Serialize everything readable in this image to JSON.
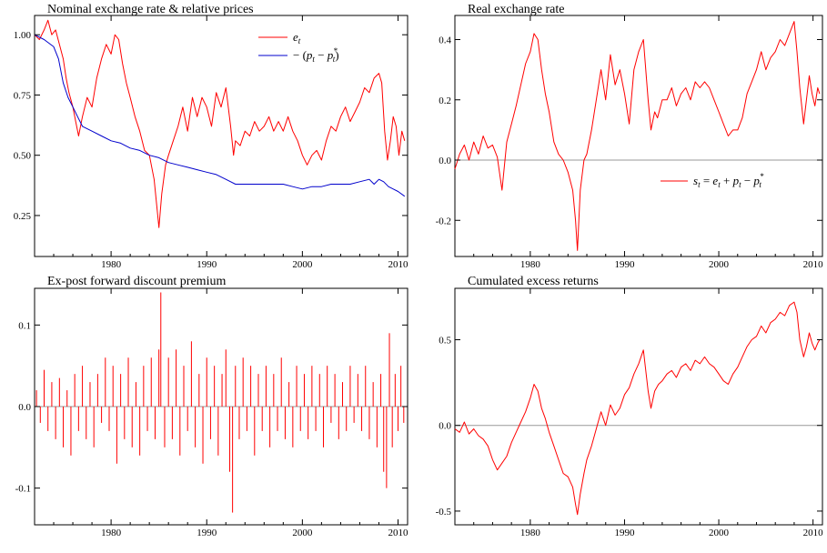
{
  "chart_data": [
    {
      "type": "line",
      "title": "Nominal exchange rate & relative prices",
      "xlim": [
        1972,
        2011
      ],
      "ylim": [
        0.08,
        1.08
      ],
      "xticks": [
        1980,
        1990,
        2000,
        2010
      ],
      "yticks": [
        0.25,
        0.5,
        0.75,
        1.0
      ],
      "ytick_labels": [
        "0.25",
        "0.50",
        "0.75",
        "1.00"
      ],
      "zero_line": false,
      "legend": "top-right",
      "series": [
        {
          "name": "e_t",
          "color": "#ff0000",
          "x": [
            1972.0,
            1972.5,
            1973.0,
            1973.4,
            1973.8,
            1974.2,
            1974.6,
            1975.0,
            1975.3,
            1975.6,
            1976.0,
            1976.3,
            1976.6,
            1977.0,
            1977.5,
            1978.0,
            1978.5,
            1979.0,
            1979.5,
            1980.0,
            1980.4,
            1980.8,
            1981.2,
            1981.6,
            1982.0,
            1982.5,
            1983.0,
            1983.5,
            1984.0,
            1984.5,
            1985.0,
            1985.3,
            1985.7,
            1986.0,
            1986.5,
            1987.0,
            1987.5,
            1988.0,
            1988.5,
            1989.0,
            1989.5,
            1990.0,
            1990.5,
            1991.0,
            1991.5,
            1992.0,
            1992.5,
            1992.8,
            1993.0,
            1993.5,
            1994.0,
            1994.5,
            1995.0,
            1995.5,
            1996.0,
            1996.5,
            1997.0,
            1997.5,
            1998.0,
            1998.5,
            1999.0,
            1999.5,
            2000.0,
            2000.5,
            2001.0,
            2001.5,
            2002.0,
            2002.5,
            2003.0,
            2003.5,
            2004.0,
            2004.5,
            2005.0,
            2005.5,
            2006.0,
            2006.5,
            2007.0,
            2007.5,
            2008.0,
            2008.3,
            2008.6,
            2008.9,
            2009.2,
            2009.5,
            2009.8,
            2010.1,
            2010.4,
            2010.7
          ],
          "y": [
            1.0,
            0.98,
            1.02,
            1.06,
            1.0,
            1.02,
            0.96,
            0.9,
            0.82,
            0.76,
            0.7,
            0.64,
            0.58,
            0.66,
            0.74,
            0.7,
            0.82,
            0.9,
            0.96,
            0.92,
            1.0,
            0.98,
            0.88,
            0.8,
            0.74,
            0.66,
            0.6,
            0.52,
            0.5,
            0.4,
            0.2,
            0.34,
            0.46,
            0.5,
            0.56,
            0.62,
            0.7,
            0.6,
            0.74,
            0.66,
            0.74,
            0.7,
            0.62,
            0.76,
            0.7,
            0.78,
            0.62,
            0.5,
            0.56,
            0.54,
            0.6,
            0.58,
            0.64,
            0.6,
            0.62,
            0.66,
            0.6,
            0.64,
            0.6,
            0.66,
            0.6,
            0.56,
            0.5,
            0.46,
            0.5,
            0.52,
            0.48,
            0.56,
            0.62,
            0.6,
            0.66,
            0.7,
            0.64,
            0.68,
            0.72,
            0.78,
            0.76,
            0.82,
            0.84,
            0.8,
            0.6,
            0.48,
            0.56,
            0.66,
            0.62,
            0.5,
            0.6,
            0.56
          ]
        },
        {
          "name": "−(p_t − p*_t)",
          "color": "#0000cc",
          "x": [
            1972.0,
            1973.0,
            1974.0,
            1974.5,
            1975.0,
            1975.5,
            1976.0,
            1976.5,
            1977.0,
            1978.0,
            1979.0,
            1980.0,
            1981.0,
            1982.0,
            1983.0,
            1984.0,
            1985.0,
            1986.0,
            1987.0,
            1988.0,
            1989.0,
            1990.0,
            1991.0,
            1992.0,
            1993.0,
            1994.0,
            1995.0,
            1996.0,
            1997.0,
            1998.0,
            1999.0,
            2000.0,
            2001.0,
            2002.0,
            2003.0,
            2004.0,
            2005.0,
            2006.0,
            2007.0,
            2007.5,
            2008.0,
            2008.5,
            2009.0,
            2009.5,
            2010.0,
            2010.7
          ],
          "y": [
            1.0,
            0.98,
            0.95,
            0.9,
            0.8,
            0.74,
            0.7,
            0.66,
            0.62,
            0.6,
            0.58,
            0.56,
            0.55,
            0.53,
            0.52,
            0.5,
            0.49,
            0.47,
            0.46,
            0.45,
            0.44,
            0.43,
            0.42,
            0.4,
            0.38,
            0.38,
            0.38,
            0.38,
            0.38,
            0.38,
            0.37,
            0.36,
            0.37,
            0.37,
            0.38,
            0.38,
            0.38,
            0.39,
            0.4,
            0.38,
            0.4,
            0.39,
            0.37,
            0.36,
            0.35,
            0.33
          ]
        }
      ]
    },
    {
      "type": "line",
      "title": "Real exchange rate",
      "xlim": [
        1972,
        2011
      ],
      "ylim": [
        -0.32,
        0.48
      ],
      "xticks": [
        1980,
        1990,
        2000,
        2010
      ],
      "yticks": [
        -0.2,
        0.0,
        0.2,
        0.4
      ],
      "ytick_labels": [
        "-0.2",
        "0.0",
        "0.2",
        "0.4"
      ],
      "zero_line": true,
      "legend": "center-right",
      "series": [
        {
          "name": "s_t = e_t + p_t − p*_t",
          "color": "#ff0000",
          "x": [
            1972.0,
            1972.5,
            1973.0,
            1973.5,
            1974.0,
            1974.5,
            1975.0,
            1975.5,
            1976.0,
            1976.5,
            1977.0,
            1977.5,
            1978.0,
            1978.5,
            1979.0,
            1979.5,
            1980.0,
            1980.4,
            1980.8,
            1981.2,
            1981.6,
            1982.0,
            1982.5,
            1983.0,
            1983.5,
            1984.0,
            1984.5,
            1984.8,
            1985.0,
            1985.3,
            1985.7,
            1986.0,
            1986.5,
            1987.0,
            1987.5,
            1988.0,
            1988.5,
            1989.0,
            1989.5,
            1990.0,
            1990.5,
            1991.0,
            1991.5,
            1992.0,
            1992.5,
            1992.8,
            1993.2,
            1993.5,
            1994.0,
            1994.5,
            1995.0,
            1995.5,
            1996.0,
            1996.5,
            1997.0,
            1997.5,
            1998.0,
            1998.5,
            1999.0,
            1999.5,
            2000.0,
            2000.5,
            2001.0,
            2001.5,
            2002.0,
            2002.5,
            2003.0,
            2003.5,
            2004.0,
            2004.5,
            2005.0,
            2005.5,
            2006.0,
            2006.5,
            2007.0,
            2007.5,
            2008.0,
            2008.3,
            2008.6,
            2009.0,
            2009.3,
            2009.6,
            2009.9,
            2010.2,
            2010.5,
            2010.7
          ],
          "y": [
            -0.03,
            0.02,
            0.05,
            0.0,
            0.06,
            0.02,
            0.08,
            0.04,
            0.05,
            0.01,
            -0.1,
            0.06,
            0.12,
            0.18,
            0.25,
            0.32,
            0.36,
            0.42,
            0.4,
            0.3,
            0.22,
            0.16,
            0.06,
            0.02,
            0.0,
            -0.04,
            -0.1,
            -0.2,
            -0.3,
            -0.1,
            0.0,
            0.02,
            0.1,
            0.2,
            0.3,
            0.2,
            0.35,
            0.25,
            0.3,
            0.22,
            0.12,
            0.3,
            0.36,
            0.4,
            0.2,
            0.1,
            0.16,
            0.14,
            0.2,
            0.2,
            0.24,
            0.18,
            0.22,
            0.24,
            0.2,
            0.26,
            0.24,
            0.26,
            0.24,
            0.2,
            0.16,
            0.12,
            0.08,
            0.1,
            0.1,
            0.14,
            0.22,
            0.26,
            0.3,
            0.36,
            0.3,
            0.34,
            0.36,
            0.4,
            0.38,
            0.42,
            0.46,
            0.36,
            0.24,
            0.12,
            0.2,
            0.28,
            0.22,
            0.18,
            0.24,
            0.22
          ]
        }
      ]
    },
    {
      "type": "bar",
      "title": "Ex-post forward discount premium",
      "xlim": [
        1972,
        2011
      ],
      "ylim": [
        -0.145,
        0.145
      ],
      "xticks": [
        1980,
        1990,
        2000,
        2010
      ],
      "yticks": [
        -0.1,
        0.0,
        0.1
      ],
      "ytick_labels": [
        "-0.1",
        "0.0",
        "0.1"
      ],
      "zero_line": true,
      "series": [
        {
          "name": "",
          "color": "#ff0000",
          "x": [
            1972.2,
            1972.6,
            1973.0,
            1973.4,
            1973.8,
            1974.2,
            1974.6,
            1975.0,
            1975.4,
            1975.8,
            1976.2,
            1976.6,
            1977.0,
            1977.4,
            1977.8,
            1978.2,
            1978.6,
            1979.0,
            1979.4,
            1979.8,
            1980.2,
            1980.6,
            1981.0,
            1981.4,
            1981.8,
            1982.2,
            1982.6,
            1983.0,
            1983.4,
            1983.8,
            1984.2,
            1984.6,
            1985.0,
            1985.2,
            1985.6,
            1986.0,
            1986.4,
            1986.8,
            1987.2,
            1987.6,
            1988.0,
            1988.4,
            1988.8,
            1989.2,
            1989.6,
            1990.0,
            1990.4,
            1990.8,
            1991.2,
            1991.6,
            1992.0,
            1992.4,
            1992.7,
            1993.0,
            1993.4,
            1993.8,
            1994.2,
            1994.6,
            1995.0,
            1995.4,
            1995.8,
            1996.2,
            1996.6,
            1997.0,
            1997.4,
            1997.8,
            1998.2,
            1998.6,
            1999.0,
            1999.4,
            1999.8,
            2000.2,
            2000.6,
            2001.0,
            2001.4,
            2001.8,
            2002.2,
            2002.6,
            2003.0,
            2003.4,
            2003.8,
            2004.2,
            2004.6,
            2005.0,
            2005.4,
            2005.8,
            2006.2,
            2006.6,
            2007.0,
            2007.4,
            2007.8,
            2008.2,
            2008.5,
            2008.8,
            2009.1,
            2009.4,
            2009.7,
            2010.0,
            2010.3,
            2010.6
          ],
          "y": [
            0.02,
            -0.02,
            0.045,
            -0.03,
            0.03,
            -0.04,
            0.035,
            -0.05,
            0.02,
            -0.06,
            0.04,
            -0.03,
            0.05,
            -0.04,
            0.03,
            -0.05,
            0.04,
            -0.02,
            0.06,
            -0.03,
            0.05,
            -0.07,
            0.04,
            -0.04,
            0.06,
            -0.05,
            0.03,
            -0.06,
            0.05,
            -0.03,
            0.06,
            -0.04,
            0.07,
            0.14,
            -0.05,
            0.06,
            -0.04,
            0.07,
            -0.06,
            0.05,
            -0.03,
            0.08,
            -0.05,
            0.04,
            -0.07,
            0.06,
            -0.04,
            0.05,
            -0.06,
            0.04,
            0.07,
            -0.08,
            -0.13,
            0.05,
            -0.04,
            0.06,
            -0.03,
            0.05,
            -0.06,
            0.04,
            -0.03,
            0.05,
            -0.05,
            0.04,
            -0.03,
            0.06,
            -0.04,
            0.03,
            -0.05,
            0.05,
            -0.03,
            0.04,
            -0.04,
            0.05,
            -0.03,
            0.04,
            -0.05,
            0.05,
            -0.02,
            0.04,
            -0.04,
            0.03,
            -0.03,
            0.05,
            -0.02,
            0.04,
            -0.03,
            0.05,
            -0.04,
            0.03,
            -0.05,
            0.04,
            -0.08,
            -0.1,
            0.09,
            -0.05,
            0.04,
            -0.03,
            0.05,
            -0.02
          ]
        }
      ]
    },
    {
      "type": "line",
      "title": "Cumulated excess returns",
      "xlim": [
        1972,
        2011
      ],
      "ylim": [
        -0.58,
        0.8
      ],
      "xticks": [
        1980,
        1990,
        2000,
        2010
      ],
      "yticks": [
        -0.5,
        0.0,
        0.5
      ],
      "ytick_labels": [
        "-0.5",
        "0.0",
        "0.5"
      ],
      "zero_line": true,
      "series": [
        {
          "name": "",
          "color": "#ff0000",
          "x": [
            1972.0,
            1972.5,
            1973.0,
            1973.5,
            1974.0,
            1974.5,
            1975.0,
            1975.5,
            1976.0,
            1976.5,
            1977.0,
            1977.5,
            1978.0,
            1978.5,
            1979.0,
            1979.5,
            1980.0,
            1980.4,
            1980.8,
            1981.2,
            1981.6,
            1982.0,
            1982.5,
            1983.0,
            1983.5,
            1984.0,
            1984.5,
            1984.8,
            1985.0,
            1985.3,
            1985.7,
            1986.0,
            1986.5,
            1987.0,
            1987.5,
            1988.0,
            1988.5,
            1989.0,
            1989.5,
            1990.0,
            1990.5,
            1991.0,
            1991.5,
            1992.0,
            1992.5,
            1992.8,
            1993.2,
            1993.6,
            1994.0,
            1994.5,
            1995.0,
            1995.5,
            1996.0,
            1996.5,
            1997.0,
            1997.5,
            1998.0,
            1998.5,
            1999.0,
            1999.5,
            2000.0,
            2000.5,
            2001.0,
            2001.5,
            2002.0,
            2002.5,
            2003.0,
            2003.5,
            2004.0,
            2004.5,
            2005.0,
            2005.5,
            2006.0,
            2006.5,
            2007.0,
            2007.5,
            2008.0,
            2008.3,
            2008.6,
            2009.0,
            2009.3,
            2009.6,
            2009.9,
            2010.2,
            2010.5,
            2010.7
          ],
          "y": [
            -0.02,
            -0.04,
            0.02,
            -0.05,
            -0.02,
            -0.06,
            -0.08,
            -0.12,
            -0.2,
            -0.26,
            -0.22,
            -0.18,
            -0.1,
            -0.04,
            0.02,
            0.08,
            0.16,
            0.24,
            0.2,
            0.1,
            0.04,
            -0.04,
            -0.12,
            -0.2,
            -0.28,
            -0.3,
            -0.36,
            -0.46,
            -0.52,
            -0.4,
            -0.28,
            -0.2,
            -0.12,
            -0.02,
            0.08,
            0.0,
            0.12,
            0.06,
            0.1,
            0.18,
            0.22,
            0.3,
            0.36,
            0.44,
            0.2,
            0.1,
            0.2,
            0.24,
            0.26,
            0.3,
            0.32,
            0.28,
            0.34,
            0.36,
            0.32,
            0.38,
            0.36,
            0.4,
            0.36,
            0.34,
            0.3,
            0.26,
            0.24,
            0.3,
            0.34,
            0.4,
            0.46,
            0.5,
            0.52,
            0.58,
            0.54,
            0.6,
            0.62,
            0.66,
            0.64,
            0.7,
            0.72,
            0.66,
            0.5,
            0.4,
            0.46,
            0.54,
            0.48,
            0.44,
            0.48,
            0.5
          ]
        }
      ]
    }
  ]
}
